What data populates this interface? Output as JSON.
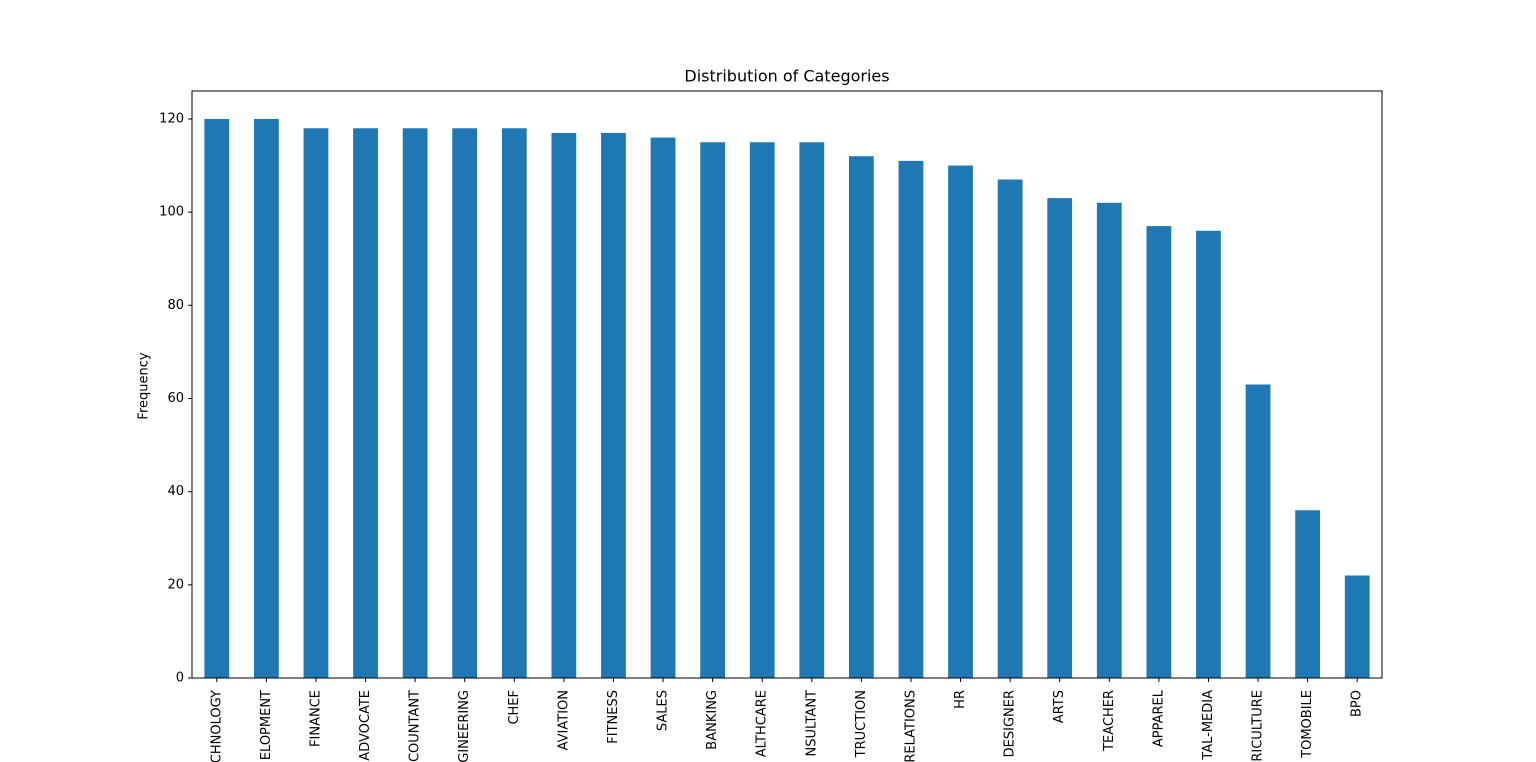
{
  "chart_data": {
    "type": "bar",
    "title": "Distribution of Categories",
    "y_label": "Frequency",
    "categories": [
      "CHNOLOGY",
      "ELOPMENT",
      "FINANCE",
      "ADVOCATE",
      "COUNTANT",
      "GINEERING",
      "CHEF",
      "AVIATION",
      "FITNESS",
      "SALES",
      "BANKING",
      "ALTHCARE",
      "NSULTANT",
      "TRUCTION",
      "RELATIONS",
      "HR",
      "DESIGNER",
      "ARTS",
      "TEACHER",
      "APPAREL",
      "TAL-MEDIA",
      "RICULTURE",
      "TOMOBILE",
      "BPO"
    ],
    "values": [
      120,
      120,
      118,
      118,
      118,
      118,
      118,
      117,
      117,
      116,
      115,
      115,
      115,
      112,
      111,
      110,
      107,
      103,
      102,
      97,
      96,
      63,
      36,
      22
    ],
    "color": "#1f77b4",
    "ylim": [
      0,
      126
    ],
    "yticks": [
      0,
      20,
      40,
      60,
      80,
      100,
      120
    ],
    "grid": false
  }
}
